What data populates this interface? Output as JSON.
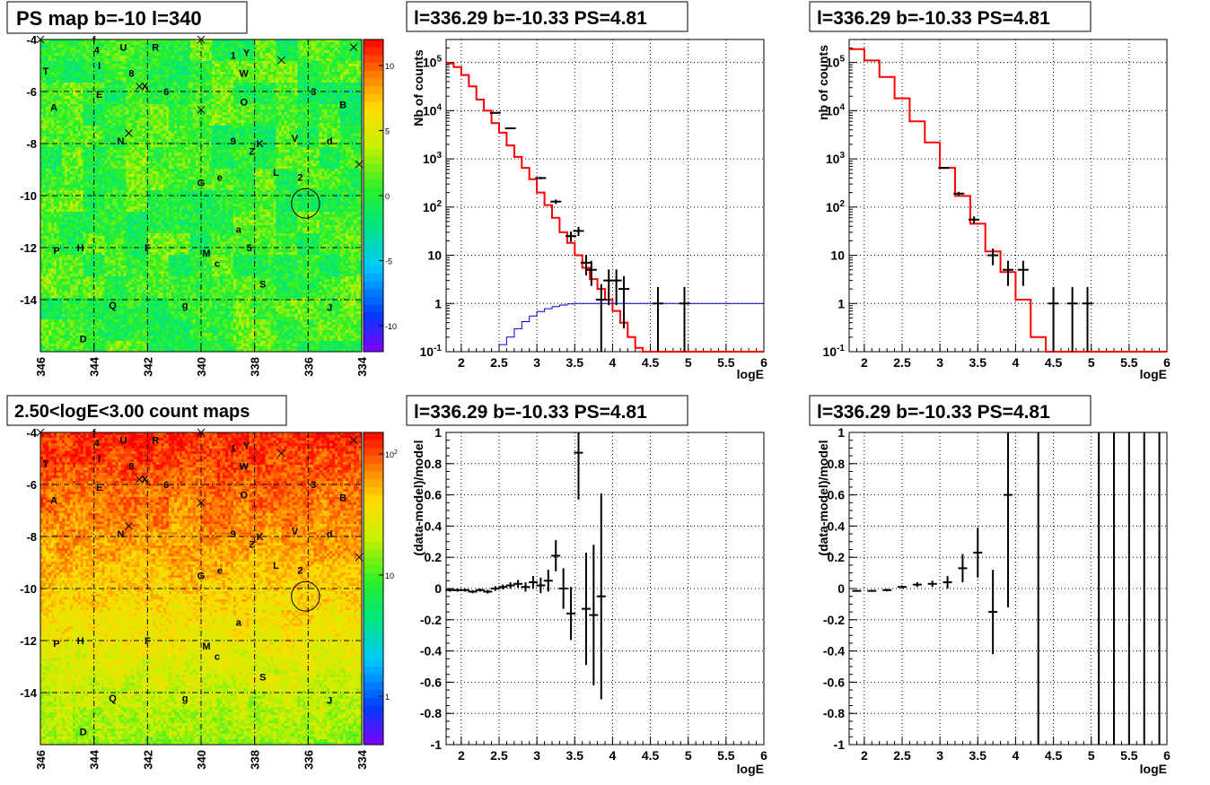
{
  "colors": {
    "background": "#ffffff",
    "frame": "#000000",
    "model_line": "#ff0000",
    "flat_line": "#0000cc",
    "data_marker": "#000000"
  },
  "palette_name": "rainbow",
  "chart_data": [
    {
      "id": "ps-map",
      "type": "heatmap",
      "title": "PS map b=-10 l=340",
      "x_ticks": [
        "346",
        "344",
        "342",
        "340",
        "338",
        "336",
        "334"
      ],
      "y_ticks": [
        "-4",
        "-6",
        "-8",
        "-10",
        "-12",
        "-14"
      ],
      "xlim": [
        346,
        334
      ],
      "ylim": [
        -16,
        -4
      ],
      "grid": true,
      "colorbar": {
        "min": -12,
        "max": 12,
        "scale": "linear",
        "ticks": [
          "10",
          "5",
          "0",
          "-5",
          "-10"
        ]
      },
      "level_description": "mostly near 0 (green) with small blue-cyan and yellow fluctuations",
      "circle": {
        "l": 336.1,
        "b": -10.3,
        "radius_deg": 0.5
      },
      "crosses": [
        {
          "l": 346,
          "b": -4
        },
        {
          "l": 340,
          "b": -4
        },
        {
          "l": 334.3,
          "b": -4.3
        },
        {
          "l": 337,
          "b": -4.8
        },
        {
          "l": 342.3,
          "b": -5.8
        },
        {
          "l": 340,
          "b": -6.7
        },
        {
          "l": 342.7,
          "b": -7.6
        },
        {
          "l": 334.1,
          "b": -8.8
        }
      ],
      "labels": [
        {
          "text": "f",
          "l": 344.0,
          "b": -4.0
        },
        {
          "text": "4",
          "l": 343.9,
          "b": -4.4
        },
        {
          "text": "U",
          "l": 342.9,
          "b": -4.3
        },
        {
          "text": "R",
          "l": 341.7,
          "b": -4.3
        },
        {
          "text": "1",
          "l": 338.8,
          "b": -4.6
        },
        {
          "text": "Y",
          "l": 338.3,
          "b": -4.5
        },
        {
          "text": "T",
          "l": 345.8,
          "b": -5.2
        },
        {
          "text": "I",
          "l": 343.8,
          "b": -5.0
        },
        {
          "text": "8",
          "l": 342.6,
          "b": -5.3
        },
        {
          "text": "W",
          "l": 338.4,
          "b": -5.3
        },
        {
          "text": "X",
          "l": 342.1,
          "b": -5.8
        },
        {
          "text": "6",
          "l": 341.3,
          "b": -6.0
        },
        {
          "text": "E",
          "l": 343.8,
          "b": -6.1
        },
        {
          "text": "3",
          "l": 335.8,
          "b": -6.0
        },
        {
          "text": "O",
          "l": 338.4,
          "b": -6.4
        },
        {
          "text": "A",
          "l": 345.5,
          "b": -6.6
        },
        {
          "text": "B",
          "l": 334.7,
          "b": -6.5
        },
        {
          "text": "N",
          "l": 343.0,
          "b": -7.9
        },
        {
          "text": "9",
          "l": 338.8,
          "b": -7.9
        },
        {
          "text": "K",
          "l": 337.8,
          "b": -8.0
        },
        {
          "text": "V",
          "l": 336.5,
          "b": -7.8
        },
        {
          "text": "d",
          "l": 335.2,
          "b": -7.9
        },
        {
          "text": "Z",
          "l": 338.1,
          "b": -8.3
        },
        {
          "text": "L",
          "l": 337.2,
          "b": -9.1
        },
        {
          "text": "2",
          "l": 336.3,
          "b": -9.3
        },
        {
          "text": "G",
          "l": 340.0,
          "b": -9.5
        },
        {
          "text": "e",
          "l": 339.3,
          "b": -9.3
        },
        {
          "text": "a",
          "l": 338.6,
          "b": -11.3
        },
        {
          "text": "5",
          "l": 338.2,
          "b": -12.0
        },
        {
          "text": "P",
          "l": 345.4,
          "b": -12.1
        },
        {
          "text": "H",
          "l": 344.5,
          "b": -12.0
        },
        {
          "text": "F",
          "l": 342.0,
          "b": -12.0
        },
        {
          "text": "M",
          "l": 339.8,
          "b": -12.2
        },
        {
          "text": "c",
          "l": 339.4,
          "b": -12.6
        },
        {
          "text": "S",
          "l": 337.7,
          "b": -13.4
        },
        {
          "text": "Q",
          "l": 343.3,
          "b": -14.2
        },
        {
          "text": "g",
          "l": 340.6,
          "b": -14.2
        },
        {
          "text": "J",
          "l": 335.2,
          "b": -14.3
        },
        {
          "text": "D",
          "l": 344.4,
          "b": -15.5
        }
      ]
    },
    {
      "id": "spectrum-left",
      "type": "line",
      "title": "l=336.29 b=-10.33 PS=4.81",
      "xlabel": "logE",
      "ylabel": "Nb of counts",
      "xlim": [
        1.8,
        6
      ],
      "ylim": [
        0.1,
        300000
      ],
      "yscale": "log",
      "grid": true,
      "x_ticks": [
        "2",
        "2.5",
        "3",
        "3.5",
        "4",
        "4.5",
        "5",
        "5.5",
        "6"
      ],
      "y_ticks": [
        "10^-1",
        "1",
        "10",
        "10^2",
        "10^3",
        "10^4",
        "10^5"
      ],
      "series": [
        {
          "kind": "model-step",
          "color": "#ff0000",
          "edges": [
            1.8,
            1.9,
            2.0,
            2.1,
            2.2,
            2.3,
            2.4,
            2.5,
            2.6,
            2.7,
            2.8,
            2.9,
            3.0,
            3.1,
            3.2,
            3.3,
            3.4,
            3.5,
            3.6,
            3.7,
            3.8,
            3.9,
            4.0,
            4.1,
            4.2,
            4.3,
            4.4,
            4.5,
            6.0
          ],
          "values": [
            95000,
            80000,
            55000,
            32000,
            17000,
            10000,
            5500,
            3500,
            1900,
            1100,
            650,
            380,
            200,
            110,
            60,
            30,
            18,
            10,
            5.5,
            3.2,
            2.0,
            1.2,
            0.7,
            0.4,
            0.2,
            0.12,
            0.1,
            0.1
          ]
        },
        {
          "kind": "flat-step",
          "color": "#0000cc",
          "edges": [
            2.5,
            2.6,
            2.7,
            2.8,
            2.9,
            3.0,
            3.1,
            3.2,
            3.3,
            3.4,
            3.5,
            6.0
          ],
          "values": [
            0.14,
            0.2,
            0.3,
            0.42,
            0.55,
            0.68,
            0.78,
            0.86,
            0.93,
            0.98,
            1.0
          ]
        },
        {
          "kind": "data-points",
          "color": "#000000",
          "points": [
            {
              "x": 2.45,
              "y": 9000
            },
            {
              "x": 2.65,
              "y": 4300
            },
            {
              "x": 3.05,
              "y": 400
            },
            {
              "x": 3.25,
              "y": 130
            },
            {
              "x": 3.45,
              "y": 25
            },
            {
              "x": 3.55,
              "y": 32
            },
            {
              "x": 3.65,
              "y": 7
            },
            {
              "x": 3.72,
              "y": 5
            },
            {
              "x": 3.85,
              "y": 1.2
            },
            {
              "x": 3.95,
              "y": 3
            },
            {
              "x": 4.05,
              "y": 3
            },
            {
              "x": 4.15,
              "y": 2
            },
            {
              "x": 4.6,
              "y": 1
            },
            {
              "x": 4.95,
              "y": 1
            }
          ]
        }
      ]
    },
    {
      "id": "spectrum-right",
      "type": "line",
      "title": "l=336.29 b=-10.33 PS=4.81",
      "xlabel": "logE",
      "ylabel": "nb of counts",
      "xlim": [
        1.8,
        6
      ],
      "ylim": [
        0.1,
        300000
      ],
      "yscale": "log",
      "grid": true,
      "x_ticks": [
        "2",
        "2.5",
        "3",
        "3.5",
        "4",
        "4.5",
        "5",
        "5.5",
        "6"
      ],
      "y_ticks": [
        "10^-1",
        "1",
        "10",
        "10^2",
        "10^3",
        "10^4",
        "10^5"
      ],
      "series": [
        {
          "kind": "model-step",
          "color": "#ff0000",
          "edges": [
            1.8,
            2.0,
            2.2,
            2.4,
            2.6,
            2.8,
            3.0,
            3.2,
            3.4,
            3.6,
            3.8,
            4.0,
            4.2,
            4.4,
            6.0
          ],
          "values": [
            190000,
            110000,
            50000,
            18000,
            6000,
            2200,
            650,
            170,
            45,
            12,
            4.5,
            1.2,
            0.2,
            0.1
          ]
        },
        {
          "kind": "data-points",
          "color": "#000000",
          "points": [
            {
              "x": 3.05,
              "y": 650
            },
            {
              "x": 3.25,
              "y": 190
            },
            {
              "x": 3.45,
              "y": 55
            },
            {
              "x": 3.7,
              "y": 10
            },
            {
              "x": 3.9,
              "y": 5
            },
            {
              "x": 4.1,
              "y": 5
            },
            {
              "x": 4.5,
              "y": 1
            },
            {
              "x": 4.75,
              "y": 1
            },
            {
              "x": 4.95,
              "y": 1
            }
          ]
        }
      ]
    },
    {
      "id": "count-map",
      "type": "heatmap",
      "title": "2.50<logE<3.00 count maps",
      "x_ticks": [
        "346",
        "344",
        "342",
        "340",
        "338",
        "336",
        "334"
      ],
      "y_ticks": [
        "-4",
        "-6",
        "-8",
        "-10",
        "-12",
        "-14"
      ],
      "xlim": [
        346,
        334
      ],
      "ylim": [
        -16,
        -4
      ],
      "grid": true,
      "colorbar": {
        "min": 0.4,
        "max": 150,
        "scale": "log",
        "ticks": [
          "10^2",
          "10",
          "1"
        ]
      },
      "level_description": "highest counts (red) at b=-4, decreasing toward yellow-green at b=-16",
      "circle": {
        "l": 336.1,
        "b": -10.3,
        "radius_deg": 0.5
      },
      "crosses": [
        {
          "l": 346,
          "b": -4
        },
        {
          "l": 340,
          "b": -4
        },
        {
          "l": 334.3,
          "b": -4.3
        },
        {
          "l": 337,
          "b": -4.8
        },
        {
          "l": 342.3,
          "b": -5.8
        },
        {
          "l": 340,
          "b": -6.7
        },
        {
          "l": 342.7,
          "b": -7.6
        },
        {
          "l": 334.1,
          "b": -8.8
        }
      ],
      "labels": [
        {
          "text": "f",
          "l": 344.0,
          "b": -4.0
        },
        {
          "text": "4",
          "l": 343.9,
          "b": -4.4
        },
        {
          "text": "U",
          "l": 342.9,
          "b": -4.3
        },
        {
          "text": "R",
          "l": 341.7,
          "b": -4.3
        },
        {
          "text": "1",
          "l": 338.8,
          "b": -4.6
        },
        {
          "text": "Y",
          "l": 338.3,
          "b": -4.5
        },
        {
          "text": "T",
          "l": 345.8,
          "b": -5.2
        },
        {
          "text": "I",
          "l": 343.8,
          "b": -5.0
        },
        {
          "text": "8",
          "l": 342.6,
          "b": -5.3
        },
        {
          "text": "W",
          "l": 338.4,
          "b": -5.3
        },
        {
          "text": "X",
          "l": 342.1,
          "b": -5.8
        },
        {
          "text": "6",
          "l": 341.3,
          "b": -6.0
        },
        {
          "text": "E",
          "l": 343.8,
          "b": -6.1
        },
        {
          "text": "3",
          "l": 335.8,
          "b": -6.0
        },
        {
          "text": "O",
          "l": 338.4,
          "b": -6.4
        },
        {
          "text": "A",
          "l": 345.5,
          "b": -6.6
        },
        {
          "text": "B",
          "l": 334.7,
          "b": -6.5
        },
        {
          "text": "N",
          "l": 343.0,
          "b": -7.9
        },
        {
          "text": "9",
          "l": 338.8,
          "b": -7.9
        },
        {
          "text": "K",
          "l": 337.8,
          "b": -8.0
        },
        {
          "text": "V",
          "l": 336.5,
          "b": -7.8
        },
        {
          "text": "d",
          "l": 335.2,
          "b": -7.9
        },
        {
          "text": "Z",
          "l": 338.1,
          "b": -8.3
        },
        {
          "text": "L",
          "l": 337.2,
          "b": -9.1
        },
        {
          "text": "2",
          "l": 336.3,
          "b": -9.3
        },
        {
          "text": "G",
          "l": 340.0,
          "b": -9.5
        },
        {
          "text": "e",
          "l": 339.3,
          "b": -9.3
        },
        {
          "text": "a",
          "l": 338.6,
          "b": -11.3
        },
        {
          "text": "P",
          "l": 345.4,
          "b": -12.1
        },
        {
          "text": "H",
          "l": 344.5,
          "b": -12.0
        },
        {
          "text": "F",
          "l": 342.0,
          "b": -12.0
        },
        {
          "text": "M",
          "l": 339.8,
          "b": -12.2
        },
        {
          "text": "c",
          "l": 339.4,
          "b": -12.6
        },
        {
          "text": "S",
          "l": 337.7,
          "b": -13.4
        },
        {
          "text": "Q",
          "l": 343.3,
          "b": -14.2
        },
        {
          "text": "g",
          "l": 340.6,
          "b": -14.2
        },
        {
          "text": "J",
          "l": 335.2,
          "b": -14.3
        },
        {
          "text": "D",
          "l": 344.4,
          "b": -15.5
        }
      ]
    },
    {
      "id": "residual-left",
      "type": "scatter",
      "title": "l=336.29 b=-10.33 PS=4.81",
      "xlabel": "logE",
      "ylabel": "(data-model)/model",
      "xlim": [
        1.8,
        6
      ],
      "ylim": [
        -1,
        1
      ],
      "grid": true,
      "x_ticks": [
        "2",
        "2.5",
        "3",
        "3.5",
        "4",
        "4.5",
        "5",
        "5.5",
        "6"
      ],
      "y_ticks": [
        "-1",
        "-0.8",
        "-0.6",
        "-0.4",
        "-0.2",
        "0",
        "0.2",
        "0.4",
        "0.6",
        "0.8",
        "1"
      ],
      "points": [
        {
          "x": 1.85,
          "y": -0.01,
          "err": 0.01
        },
        {
          "x": 1.95,
          "y": -0.01,
          "err": 0.01
        },
        {
          "x": 2.05,
          "y": -0.01,
          "err": 0.01
        },
        {
          "x": 2.15,
          "y": -0.02,
          "err": 0.01
        },
        {
          "x": 2.25,
          "y": -0.01,
          "err": 0.01
        },
        {
          "x": 2.35,
          "y": -0.02,
          "err": 0.012
        },
        {
          "x": 2.45,
          "y": 0.0,
          "err": 0.015
        },
        {
          "x": 2.55,
          "y": 0.01,
          "err": 0.015
        },
        {
          "x": 2.65,
          "y": 0.02,
          "err": 0.02
        },
        {
          "x": 2.75,
          "y": 0.03,
          "err": 0.025
        },
        {
          "x": 2.85,
          "y": 0.01,
          "err": 0.03
        },
        {
          "x": 2.95,
          "y": 0.04,
          "err": 0.04
        },
        {
          "x": 3.05,
          "y": 0.02,
          "err": 0.05
        },
        {
          "x": 3.15,
          "y": 0.05,
          "err": 0.07
        },
        {
          "x": 3.25,
          "y": 0.21,
          "err": 0.1
        },
        {
          "x": 3.35,
          "y": 0.0,
          "err": 0.13
        },
        {
          "x": 3.45,
          "y": -0.16,
          "err": 0.17
        },
        {
          "x": 3.55,
          "y": 0.87,
          "err": 0.3
        },
        {
          "x": 3.65,
          "y": -0.13,
          "err": 0.36
        },
        {
          "x": 3.75,
          "y": -0.17,
          "err": 0.45
        },
        {
          "x": 3.85,
          "y": -0.05,
          "err": 0.66
        }
      ]
    },
    {
      "id": "residual-right",
      "type": "scatter",
      "title": "l=336.29 b=-10.33 PS=4.81",
      "xlabel": "logE",
      "ylabel": "(data-model)/model",
      "xlim": [
        1.8,
        6
      ],
      "ylim": [
        -1,
        1
      ],
      "grid": true,
      "x_ticks": [
        "2",
        "2.5",
        "3",
        "3.5",
        "4",
        "4.5",
        "5",
        "5.5",
        "6"
      ],
      "y_ticks": [
        "-1",
        "-0.8",
        "-0.6",
        "-0.4",
        "-0.2",
        "0",
        "0.2",
        "0.4",
        "0.6",
        "0.8",
        "1"
      ],
      "points": [
        {
          "x": 1.9,
          "y": -0.015,
          "err": 0.005
        },
        {
          "x": 2.1,
          "y": -0.015,
          "err": 0.006
        },
        {
          "x": 2.3,
          "y": -0.01,
          "err": 0.008
        },
        {
          "x": 2.5,
          "y": 0.01,
          "err": 0.01
        },
        {
          "x": 2.7,
          "y": 0.025,
          "err": 0.015
        },
        {
          "x": 2.9,
          "y": 0.03,
          "err": 0.02
        },
        {
          "x": 3.1,
          "y": 0.04,
          "err": 0.04
        },
        {
          "x": 3.3,
          "y": 0.13,
          "err": 0.09
        },
        {
          "x": 3.5,
          "y": 0.23,
          "err": 0.16
        },
        {
          "x": 3.7,
          "y": -0.15,
          "err": 0.27
        },
        {
          "x": 3.9,
          "y": 0.6,
          "err": 0.72
        },
        {
          "x": 4.3,
          "y": 0,
          "err": 2
        },
        {
          "x": 5.1,
          "y": 0,
          "err": 2
        },
        {
          "x": 5.3,
          "y": 0,
          "err": 2
        },
        {
          "x": 5.5,
          "y": 0,
          "err": 2
        },
        {
          "x": 5.7,
          "y": 0,
          "err": 2
        },
        {
          "x": 5.9,
          "y": 0,
          "err": 2
        }
      ]
    }
  ]
}
